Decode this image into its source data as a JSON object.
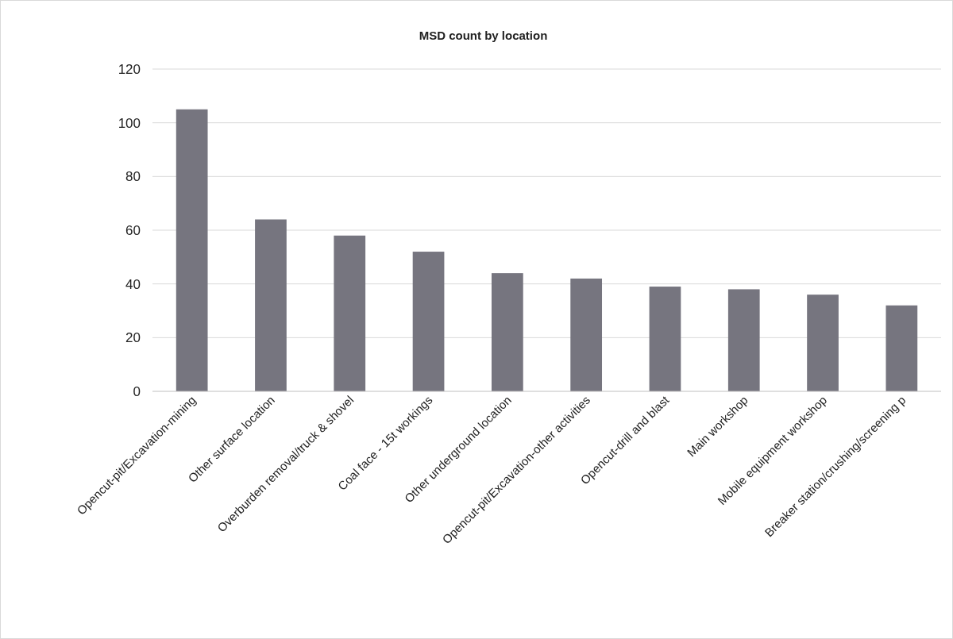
{
  "chart_data": {
    "type": "bar",
    "title": "MSD count by location",
    "categories": [
      "Opencut-pit/Excavation-mining",
      "Other surface location",
      "Overburden removal/truck & shovel",
      "Coal face - 15t workings",
      "Other underground location",
      "Opencut-pit/Excavation-other activities",
      "Opencut-drill and blast",
      "Main workshop",
      "Mobile equipment workshop",
      "Breaker station/crushing/screening p"
    ],
    "values": [
      105,
      64,
      58,
      52,
      44,
      42,
      39,
      38,
      36,
      32
    ],
    "color": "#76757f",
    "ylim": [
      0,
      120
    ],
    "yticks": [
      0,
      20,
      40,
      60,
      80,
      100,
      120
    ],
    "grid": "y"
  }
}
